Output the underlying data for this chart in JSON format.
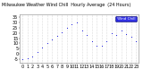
{
  "title": "Milwaukee Weather Wind Chill  Hourly Average  (24 Hours)",
  "hours": [
    0,
    1,
    2,
    3,
    4,
    5,
    6,
    7,
    8,
    9,
    10,
    11,
    12,
    13,
    14,
    15,
    16,
    17,
    18,
    19,
    20,
    21,
    22,
    23
  ],
  "wind_chill": [
    -5,
    -4,
    -2,
    2,
    6,
    10,
    14,
    17,
    21,
    25,
    28,
    30,
    22,
    18,
    12,
    8,
    8,
    12,
    20,
    18,
    22,
    19,
    16,
    12
  ],
  "dot_color": "#0000dd",
  "bg_color": "#ffffff",
  "legend_bg": "#0000dd",
  "legend_label": "Wind Chill",
  "ylim": [
    -8,
    38
  ],
  "yticks": [
    -5,
    0,
    5,
    10,
    15,
    20,
    25,
    30,
    35
  ],
  "ytick_labels": [
    "-5",
    "0",
    "5",
    "10",
    "15",
    "20",
    "25",
    "30",
    "35"
  ],
  "ylabel_fontsize": 3.5,
  "xlabel_fontsize": 3.5,
  "title_fontsize": 3.5,
  "marker_size": 1.5,
  "grid_color": "#bbbbbb",
  "grid_style": ":"
}
